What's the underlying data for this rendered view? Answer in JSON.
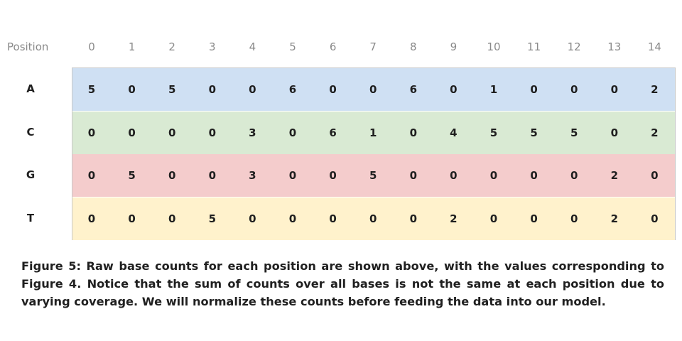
{
  "table": {
    "header_label": "Position",
    "positions": [
      "0",
      "1",
      "2",
      "3",
      "4",
      "5",
      "6",
      "7",
      "8",
      "9",
      "10",
      "11",
      "12",
      "13",
      "14"
    ],
    "rows": [
      {
        "base": "A",
        "color": "#cfe0f3",
        "counts": [
          "5",
          "0",
          "5",
          "0",
          "0",
          "6",
          "0",
          "0",
          "6",
          "0",
          "1",
          "0",
          "0",
          "0",
          "2"
        ]
      },
      {
        "base": "C",
        "color": "#d9ead3",
        "counts": [
          "0",
          "0",
          "0",
          "0",
          "3",
          "0",
          "6",
          "1",
          "0",
          "4",
          "5",
          "5",
          "5",
          "0",
          "2"
        ]
      },
      {
        "base": "G",
        "color": "#f4cccc",
        "counts": [
          "0",
          "5",
          "0",
          "0",
          "3",
          "0",
          "0",
          "5",
          "0",
          "0",
          "0",
          "0",
          "0",
          "2",
          "0"
        ]
      },
      {
        "base": "T",
        "color": "#fff2cc",
        "counts": [
          "0",
          "0",
          "0",
          "5",
          "0",
          "0",
          "0",
          "0",
          "0",
          "2",
          "0",
          "0",
          "0",
          "2",
          "0"
        ]
      }
    ]
  },
  "caption": "Figure 5: Raw base counts for each position are shown above, with the values corresponding to Figure 4. Notice that the sum of counts over all bases is not the same at each position due to varying coverage. We will normalize these counts before feeding the data into our model."
}
